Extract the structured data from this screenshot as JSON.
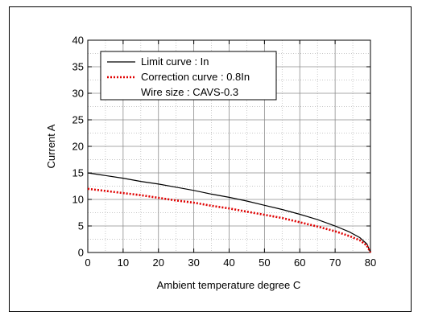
{
  "chart_data": {
    "type": "line",
    "xlabel": "Ambient temperature  degree C",
    "ylabel": "Current  A",
    "xlim": [
      0,
      80
    ],
    "ylim": [
      0,
      40
    ],
    "xticks": [
      0,
      10,
      20,
      30,
      40,
      50,
      60,
      70,
      80
    ],
    "yticks": [
      0,
      5,
      10,
      15,
      20,
      25,
      30,
      35,
      40
    ],
    "grid": true,
    "grid_color": "#8c8c8c",
    "legend_position": "top-left",
    "legend_note": "Wire size : CAVS-0.3",
    "series": [
      {
        "name": "Limit curve : In",
        "color": "#000000",
        "style": "solid",
        "x": [
          0,
          5,
          10,
          15,
          20,
          25,
          30,
          35,
          40,
          45,
          50,
          55,
          60,
          65,
          70,
          74,
          77,
          79,
          80
        ],
        "y": [
          15.0,
          14.5,
          14.0,
          13.4,
          12.9,
          12.3,
          11.7,
          11.0,
          10.4,
          9.7,
          8.9,
          8.1,
          7.2,
          6.2,
          5.0,
          3.9,
          2.8,
          1.6,
          0.0
        ]
      },
      {
        "name": "Correction curve : 0.8In",
        "color": "#e00000",
        "style": "dotted",
        "x": [
          0,
          5,
          10,
          15,
          20,
          25,
          30,
          35,
          40,
          45,
          50,
          55,
          60,
          65,
          70,
          74,
          77,
          79,
          80
        ],
        "y": [
          12.0,
          11.6,
          11.2,
          10.8,
          10.3,
          9.8,
          9.4,
          8.8,
          8.3,
          7.7,
          7.1,
          6.5,
          5.7,
          4.9,
          4.0,
          3.1,
          2.3,
          1.3,
          0.0
        ]
      }
    ]
  }
}
